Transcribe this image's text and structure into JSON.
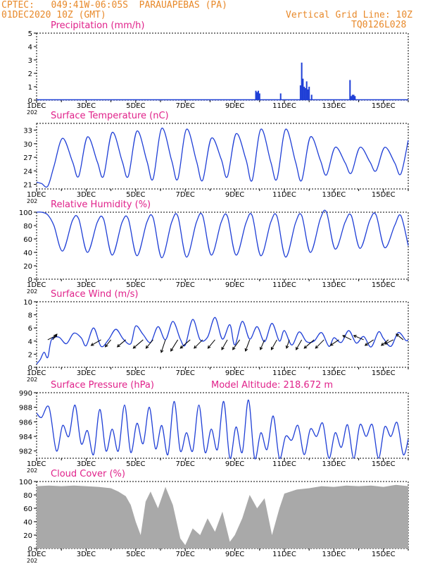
{
  "header": {
    "line1_left": "CPTEC:   049:41W-06:05S  PARAUAPEBAS (PA)",
    "line2_left": "01DEC2020 10Z (GMT)",
    "line1_right": "Vertical Grid Line: 10Z",
    "line2_right": "TQ0126L028"
  },
  "colors": {
    "header": "#e8892a",
    "title": "#e0218a",
    "line": "#1f3fd6",
    "cloud": "#a9a9a9",
    "wind_arrow": "#000000"
  },
  "x_axis": {
    "day_labels": [
      "1DEC",
      "3DEC",
      "5DEC",
      "7DEC",
      "9DEC",
      "11DEC",
      "13DEC",
      "15DEC"
    ],
    "day_positions": [
      0,
      2,
      4,
      6,
      8,
      10,
      12,
      14
    ],
    "xmax_days": 15,
    "stub_label": "202"
  },
  "chart_data": [
    {
      "type": "bar",
      "title": "Precipitation (mm/h)",
      "ylim": [
        0,
        5
      ],
      "yticks": [
        0,
        1,
        2,
        3,
        4,
        5
      ],
      "x": [
        8.85,
        8.9,
        8.95,
        9.0,
        9.85,
        10.65,
        10.7,
        10.75,
        10.8,
        10.85,
        10.9,
        10.95,
        11.0,
        11.1,
        12.65,
        12.7,
        12.75,
        12.8,
        12.85
      ],
      "values": [
        0.7,
        0.6,
        0.7,
        0.5,
        0.5,
        1.1,
        2.8,
        1.6,
        1.0,
        0.9,
        1.4,
        0.8,
        1.0,
        0.4,
        1.5,
        0.3,
        0.4,
        0.4,
        0.3
      ]
    },
    {
      "type": "line",
      "title": "Surface Temperature (nC)",
      "ylim": [
        20,
        34.5
      ],
      "yticks": [
        21,
        24,
        27,
        30,
        33
      ],
      "x": [
        0,
        0.2,
        0.45,
        0.7,
        1.05,
        1.45,
        1.7,
        2.05,
        2.45,
        2.7,
        3.05,
        3.45,
        3.7,
        4.05,
        4.45,
        4.7,
        5.05,
        5.45,
        5.7,
        6.05,
        6.45,
        6.7,
        7.05,
        7.45,
        7.7,
        8.05,
        8.45,
        8.7,
        9.05,
        9.45,
        9.7,
        10.05,
        10.45,
        10.7,
        11.05,
        11.45,
        11.7,
        12.05,
        12.45,
        12.7,
        13.05,
        13.45,
        13.7,
        14.05,
        14.45,
        14.7,
        15
      ],
      "values": [
        21.5,
        21.2,
        20.6,
        25,
        31.2,
        26,
        22.8,
        31.5,
        26,
        22.8,
        32.5,
        26.2,
        22.8,
        32.8,
        26.2,
        22.2,
        33.4,
        26.3,
        22.2,
        33.2,
        26.2,
        21.9,
        31.2,
        26.6,
        22.7,
        32.2,
        26.5,
        21.9,
        33.2,
        26,
        22.2,
        33.2,
        26,
        21.9,
        31.5,
        26.4,
        23.1,
        29.2,
        25.8,
        23.5,
        29.2,
        26,
        24,
        29.2,
        25.8,
        23.3,
        30.8
      ]
    },
    {
      "type": "line",
      "title": "Relative Humidity (%)",
      "ylim": [
        0,
        100
      ],
      "yticks": [
        0,
        20,
        40,
        60,
        80,
        100
      ],
      "x": [
        0,
        0.2,
        0.45,
        0.7,
        1.05,
        1.45,
        1.7,
        2.05,
        2.45,
        2.7,
        3.05,
        3.45,
        3.7,
        4.05,
        4.45,
        4.7,
        5.05,
        5.45,
        5.7,
        6.05,
        6.45,
        6.7,
        7.05,
        7.45,
        7.7,
        8.05,
        8.45,
        8.7,
        9.05,
        9.45,
        9.7,
        10.05,
        10.45,
        10.7,
        11.05,
        11.45,
        11.7,
        12.05,
        12.45,
        12.7,
        13.05,
        13.45,
        13.7,
        14.05,
        14.45,
        14.7,
        15
      ],
      "values": [
        100,
        100,
        96,
        80,
        42,
        88,
        90,
        40,
        85,
        90,
        36,
        85,
        90,
        35,
        85,
        92,
        32,
        85,
        94,
        33,
        85,
        95,
        36,
        85,
        94,
        36,
        84,
        95,
        35,
        85,
        94,
        33,
        84,
        95,
        40,
        90,
        100,
        45,
        85,
        95,
        46,
        88,
        96,
        47,
        80,
        95,
        50
      ]
    },
    {
      "type": "line",
      "title": "Surface Wind (m/s)",
      "ylim": [
        0,
        10
      ],
      "yticks": [
        0,
        2,
        4,
        6,
        8,
        10
      ],
      "x": [
        0,
        0.15,
        0.3,
        0.45,
        0.6,
        0.9,
        1.2,
        1.5,
        1.8,
        2.0,
        2.3,
        2.6,
        2.9,
        3.2,
        3.5,
        3.8,
        4.0,
        4.3,
        4.6,
        4.9,
        5.2,
        5.5,
        5.8,
        6.0,
        6.3,
        6.6,
        6.9,
        7.2,
        7.5,
        7.8,
        8.0,
        8.3,
        8.6,
        8.9,
        9.2,
        9.5,
        9.8,
        10.0,
        10.3,
        10.6,
        10.9,
        11.2,
        11.5,
        11.8,
        12.0,
        12.3,
        12.6,
        12.9,
        13.2,
        13.5,
        13.8,
        14.0,
        14.3,
        14.6,
        14.9,
        15
      ],
      "values": [
        0.5,
        1.2,
        2.3,
        1.5,
        4.2,
        4.6,
        3.6,
        5.2,
        4.5,
        3.3,
        6.0,
        3.2,
        4.2,
        5.8,
        4.3,
        3.6,
        6.3,
        5.0,
        3.8,
        6.2,
        4.2,
        7.0,
        4.3,
        3.4,
        7.3,
        4.2,
        4.6,
        7.6,
        4.3,
        6.5,
        3.4,
        7.0,
        4.3,
        6.2,
        3.9,
        6.7,
        4.0,
        5.6,
        3.4,
        5.4,
        3.9,
        4.0,
        5.3,
        3.2,
        4.5,
        3.8,
        5.6,
        3.7,
        4.7,
        3.1,
        5.4,
        4.4,
        3.2,
        5.3,
        4.1,
        4.2
      ],
      "arrow_x": [
        0.45,
        0.65,
        2.6,
        3.0,
        3.6,
        4.3,
        4.7,
        5.2,
        5.7,
        6.2,
        6.7,
        7.2,
        7.7,
        8.2,
        8.6,
        9.2,
        9.7,
        10.2,
        10.7,
        11.2,
        11.6,
        12.2,
        12.7,
        13.2,
        13.6,
        14.2,
        14.4,
        14.8
      ],
      "arrow_u": [
        3,
        1.5,
        -3.5,
        -2,
        -3,
        -3.5,
        -2.5,
        -1.5,
        -2.5,
        -3.5,
        -3,
        -2.5,
        -2,
        -2.5,
        -1.5,
        -1.5,
        -2,
        -1,
        -2,
        -3.5,
        -3,
        -3,
        -3,
        -3.5,
        -3,
        -2.5,
        -3,
        -2.5
      ],
      "arrow_v": [
        1.5,
        2,
        -2,
        -2.5,
        -2.5,
        -3,
        -3,
        -4.5,
        -4,
        -3,
        -3,
        -3,
        -3.5,
        -3.5,
        -4,
        -3.5,
        -3.5,
        -3,
        -3.5,
        -3,
        -3,
        -2,
        1.5,
        1.5,
        -2,
        -2,
        -1.5,
        2
      ]
    },
    {
      "type": "line",
      "title": "Surface Pressure (hPa)",
      "annotation": "Model Altitude: 218.672 m",
      "ylim": [
        981,
        990
      ],
      "yticks": [
        982,
        984,
        986,
        988,
        990
      ],
      "x": [
        0,
        0.2,
        0.5,
        0.8,
        1.05,
        1.3,
        1.55,
        1.8,
        2.05,
        2.3,
        2.55,
        2.8,
        3.05,
        3.3,
        3.55,
        3.8,
        4.05,
        4.3,
        4.55,
        4.8,
        5.05,
        5.3,
        5.55,
        5.8,
        6.05,
        6.3,
        6.55,
        6.8,
        7.05,
        7.3,
        7.55,
        7.8,
        8.05,
        8.3,
        8.55,
        8.8,
        9.05,
        9.3,
        9.55,
        9.8,
        10.05,
        10.3,
        10.55,
        10.8,
        11.05,
        11.3,
        11.55,
        11.8,
        12.05,
        12.3,
        12.55,
        12.8,
        13.05,
        13.3,
        13.55,
        13.8,
        14.05,
        14.3,
        14.55,
        14.8,
        15
      ],
      "values": [
        987.2,
        986.6,
        988.0,
        982.0,
        985.5,
        984.0,
        988.3,
        983.0,
        984.8,
        981.5,
        987.7,
        982.0,
        985.0,
        982.0,
        988.3,
        981.8,
        985.8,
        983.0,
        988.0,
        982.3,
        985.5,
        981.5,
        988.8,
        982.0,
        984.5,
        982.0,
        988.3,
        981.8,
        985.0,
        982.2,
        988.8,
        981.0,
        985.3,
        981.8,
        989.0,
        981.0,
        984.5,
        982.2,
        986.8,
        981.0,
        984.0,
        983.5,
        985.5,
        981.5,
        985.0,
        984.0,
        985.8,
        981.0,
        984.5,
        982.5,
        985.6,
        981.0,
        985.6,
        984.0,
        985.6,
        981.0,
        985.3,
        984.0,
        985.9,
        981.5,
        983.6
      ]
    },
    {
      "type": "area",
      "title": "Cloud Cover (%)",
      "ylim": [
        0,
        100
      ],
      "yticks": [
        0,
        20,
        40,
        60,
        80,
        100
      ],
      "x": [
        0,
        0.5,
        1.0,
        1.5,
        2.0,
        2.5,
        3.0,
        3.3,
        3.6,
        3.8,
        4.0,
        4.2,
        4.4,
        4.6,
        4.9,
        5.2,
        5.5,
        5.8,
        6.0,
        6.3,
        6.6,
        6.9,
        7.2,
        7.5,
        7.8,
        8.0,
        8.3,
        8.6,
        8.9,
        9.2,
        9.5,
        9.8,
        10.0,
        10.5,
        11.0,
        11.5,
        12.0,
        12.5,
        13.0,
        13.5,
        14.0,
        14.5,
        15
      ],
      "values": [
        93,
        94,
        93,
        94,
        93,
        92,
        90,
        85,
        78,
        65,
        40,
        20,
        70,
        85,
        60,
        92,
        65,
        15,
        5,
        30,
        20,
        45,
        25,
        55,
        10,
        20,
        45,
        80,
        60,
        75,
        20,
        60,
        82,
        88,
        90,
        93,
        92,
        94,
        93,
        94,
        92,
        95,
        93
      ]
    }
  ]
}
